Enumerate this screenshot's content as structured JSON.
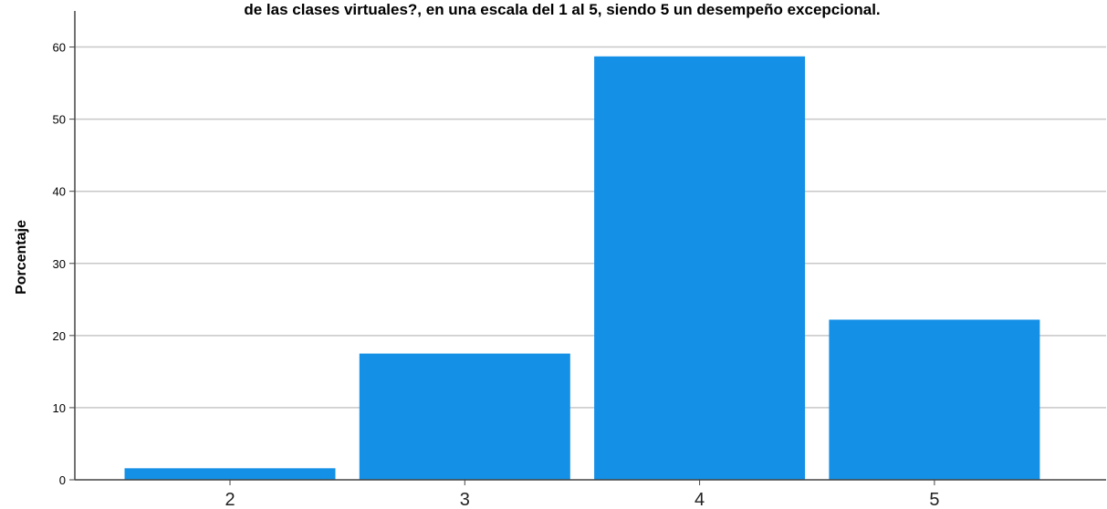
{
  "chart_data": {
    "type": "bar",
    "title": "de las clases virtuales?, en una escala del 1 al 5, siendo 5 un desempeño excepcional.",
    "xlabel": "",
    "ylabel": "Porcentaje",
    "categories": [
      "2",
      "3",
      "4",
      "5"
    ],
    "values": [
      1.6,
      17.5,
      58.7,
      22.2
    ],
    "ylim": [
      0,
      65
    ],
    "yticks": [
      0,
      10,
      20,
      30,
      40,
      50,
      60
    ],
    "ytick_labels": [
      "0",
      "10",
      "20",
      "30",
      "40",
      "50",
      "60"
    ],
    "grid": true,
    "bar_color": "#1490e6",
    "grid_color": "#c8c8c8"
  }
}
